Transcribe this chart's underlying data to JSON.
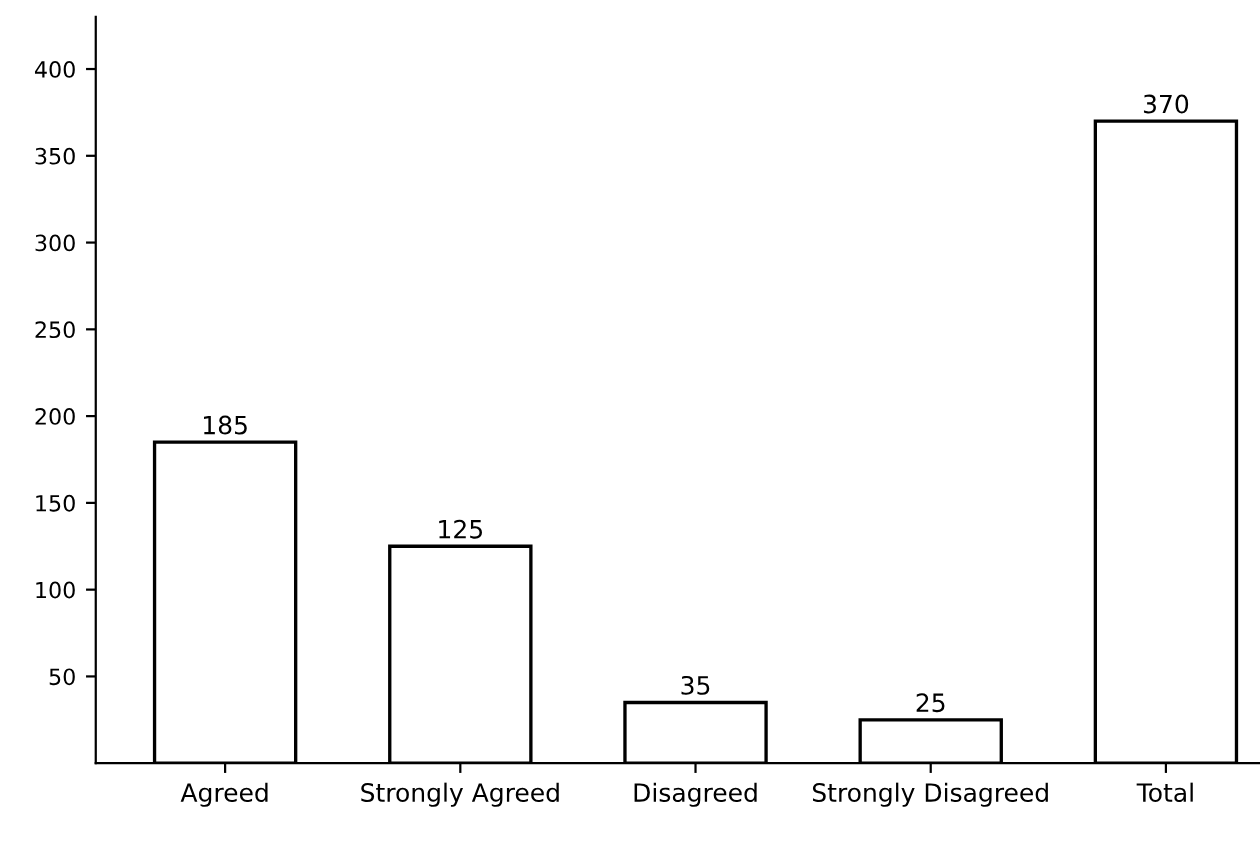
{
  "chart_data": {
    "type": "bar",
    "categories": [
      "Agreed",
      "Strongly Agreed",
      "Disagreed",
      "Strongly Disagreed",
      "Total"
    ],
    "values": [
      185,
      125,
      35,
      25,
      370
    ],
    "color": "#ffffff",
    "ylim": [
      0,
      430
    ],
    "yticks": [
      50,
      100,
      150,
      200,
      250,
      300,
      350,
      400
    ],
    "data_labels": true,
    "grid": false,
    "legend": false
  }
}
